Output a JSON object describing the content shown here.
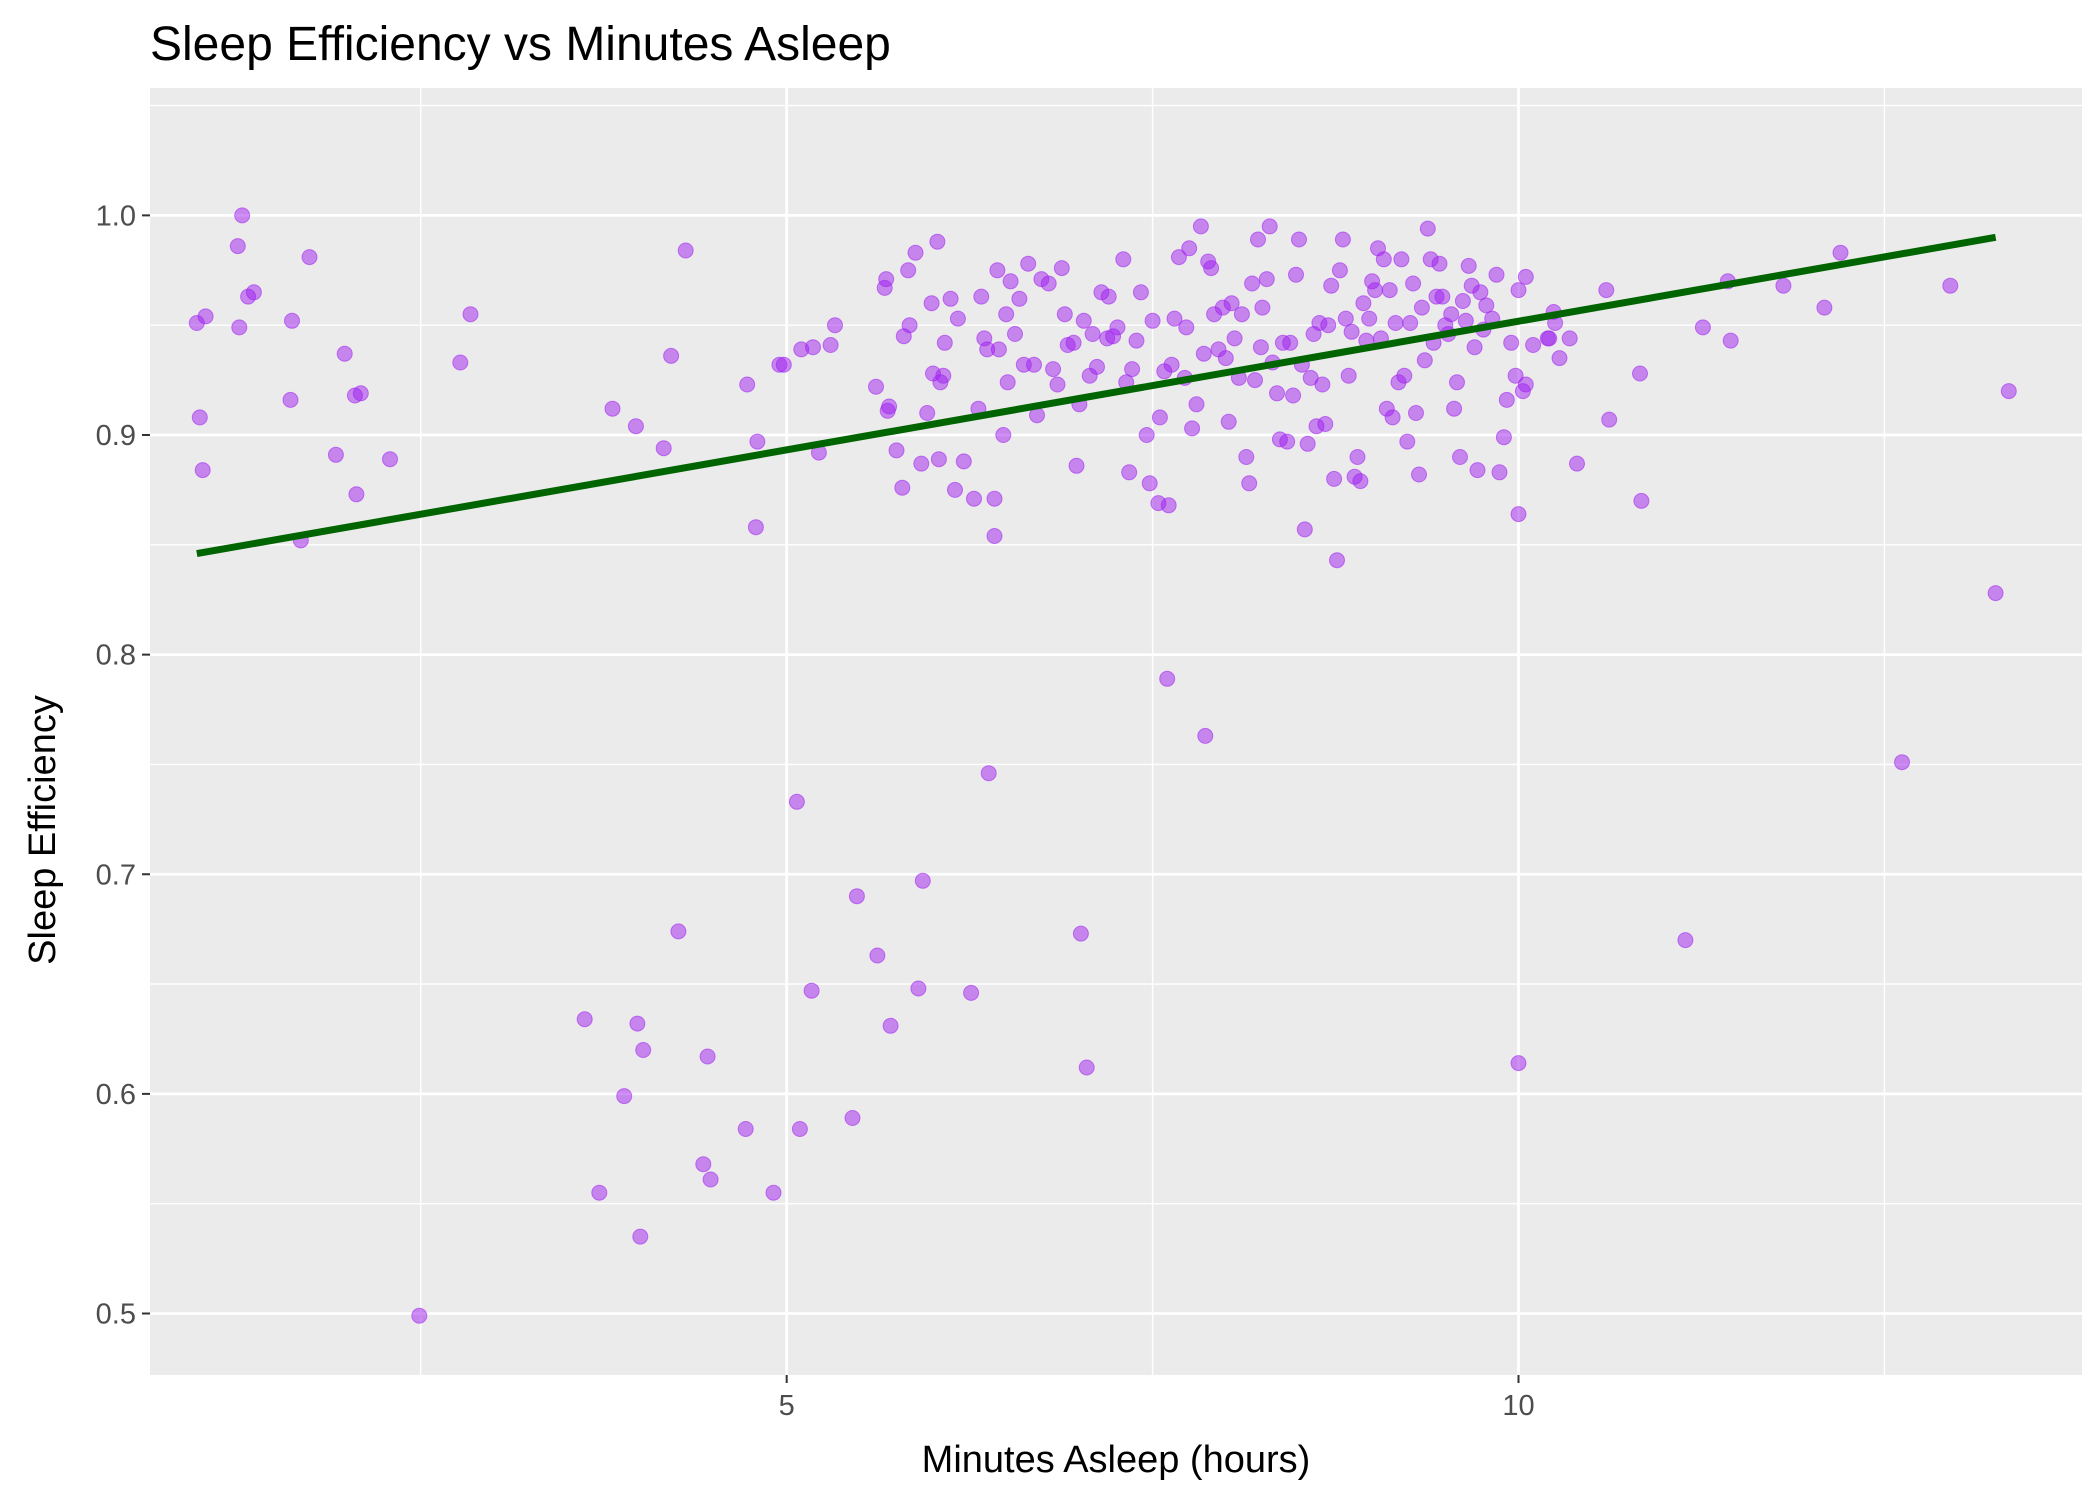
{
  "chart_data": {
    "type": "scatter",
    "title": "Sleep Efficiency vs Minutes Asleep",
    "xlabel": "Minutes Asleep (hours)",
    "ylabel": "Sleep Efficiency",
    "xlim": [
      0.65,
      13.85
    ],
    "ylim": [
      0.472,
      1.058
    ],
    "x_ticks": [
      5,
      10
    ],
    "x_minor_ticks": [
      2.5,
      7.5,
      12.5
    ],
    "y_ticks": [
      0.5,
      0.6,
      0.7,
      0.8,
      0.9,
      1.0
    ],
    "grid": true,
    "legend": "none",
    "colors": {
      "panel_background": "#ebebeb",
      "grid": "#ffffff",
      "points": "#a020f0",
      "trend_line": "#006400"
    },
    "trend_line": {
      "x": [
        0.97,
        13.26
      ],
      "y": [
        0.846,
        0.99
      ]
    },
    "series": [
      {
        "points": [
          [
            0.97,
            0.951
          ],
          [
            1.03,
            0.954
          ],
          [
            0.99,
            0.908
          ],
          [
            1.01,
            0.884
          ],
          [
            1.25,
            0.986
          ],
          [
            1.28,
            1.0
          ],
          [
            1.26,
            0.949
          ],
          [
            1.32,
            0.963
          ],
          [
            1.36,
            0.965
          ],
          [
            1.62,
            0.952
          ],
          [
            1.61,
            0.916
          ],
          [
            1.74,
            0.981
          ],
          [
            1.68,
            0.852
          ],
          [
            1.92,
            0.891
          ],
          [
            1.98,
            0.937
          ],
          [
            2.05,
            0.918
          ],
          [
            2.09,
            0.919
          ],
          [
            2.06,
            0.873
          ],
          [
            2.29,
            0.889
          ],
          [
            2.49,
            0.499
          ],
          [
            2.77,
            0.933
          ],
          [
            2.84,
            0.955
          ],
          [
            3.62,
            0.634
          ],
          [
            3.72,
            0.555
          ],
          [
            3.81,
            0.912
          ],
          [
            3.89,
            0.599
          ],
          [
            3.97,
            0.904
          ],
          [
            3.98,
            0.632
          ],
          [
            4.02,
            0.62
          ],
          [
            4.0,
            0.535
          ],
          [
            4.16,
            0.894
          ],
          [
            4.21,
            0.936
          ],
          [
            4.26,
            0.674
          ],
          [
            4.31,
            0.984
          ],
          [
            4.43,
            0.568
          ],
          [
            4.46,
            0.617
          ],
          [
            4.48,
            0.561
          ],
          [
            4.73,
            0.923
          ],
          [
            4.72,
            0.584
          ],
          [
            4.79,
            0.858
          ],
          [
            4.8,
            0.897
          ],
          [
            4.91,
            0.555
          ],
          [
            4.95,
            0.932
          ],
          [
            4.98,
            0.932
          ],
          [
            5.07,
            0.733
          ],
          [
            5.1,
            0.939
          ],
          [
            5.09,
            0.584
          ],
          [
            5.17,
            0.647
          ],
          [
            5.18,
            0.94
          ],
          [
            5.22,
            0.892
          ],
          [
            5.3,
            0.941
          ],
          [
            5.33,
            0.95
          ],
          [
            5.45,
            0.589
          ],
          [
            5.48,
            0.69
          ],
          [
            5.61,
            0.922
          ],
          [
            5.62,
            0.663
          ],
          [
            5.67,
            0.967
          ],
          [
            5.68,
            0.971
          ],
          [
            5.69,
            0.911
          ],
          [
            5.7,
            0.913
          ],
          [
            5.71,
            0.631
          ],
          [
            5.75,
            0.893
          ],
          [
            5.79,
            0.876
          ],
          [
            5.8,
            0.945
          ],
          [
            5.83,
            0.975
          ],
          [
            5.84,
            0.95
          ],
          [
            5.88,
            0.983
          ],
          [
            5.9,
            0.648
          ],
          [
            5.92,
            0.887
          ],
          [
            5.93,
            0.697
          ],
          [
            5.96,
            0.91
          ],
          [
            5.99,
            0.96
          ],
          [
            6.0,
            0.928
          ],
          [
            6.03,
            0.988
          ],
          [
            6.04,
            0.889
          ],
          [
            6.05,
            0.924
          ],
          [
            6.07,
            0.927
          ],
          [
            6.08,
            0.942
          ],
          [
            6.12,
            0.962
          ],
          [
            6.15,
            0.875
          ],
          [
            6.17,
            0.953
          ],
          [
            6.21,
            0.888
          ],
          [
            6.26,
            0.646
          ],
          [
            6.28,
            0.871
          ],
          [
            6.31,
            0.912
          ],
          [
            6.33,
            0.963
          ],
          [
            6.35,
            0.944
          ],
          [
            6.37,
            0.939
          ],
          [
            6.38,
            0.746
          ],
          [
            6.42,
            0.871
          ],
          [
            6.42,
            0.854
          ],
          [
            6.44,
            0.975
          ],
          [
            6.45,
            0.939
          ],
          [
            6.48,
            0.9
          ],
          [
            6.5,
            0.955
          ],
          [
            6.51,
            0.924
          ],
          [
            6.53,
            0.97
          ],
          [
            6.56,
            0.946
          ],
          [
            6.59,
            0.962
          ],
          [
            6.62,
            0.932
          ],
          [
            6.65,
            0.978
          ],
          [
            6.69,
            0.932
          ],
          [
            6.71,
            0.909
          ],
          [
            6.74,
            0.971
          ],
          [
            6.79,
            0.969
          ],
          [
            6.82,
            0.93
          ],
          [
            6.85,
            0.923
          ],
          [
            6.88,
            0.976
          ],
          [
            6.9,
            0.955
          ],
          [
            6.92,
            0.941
          ],
          [
            6.96,
            0.942
          ],
          [
            6.98,
            0.886
          ],
          [
            7.0,
            0.914
          ],
          [
            7.01,
            0.673
          ],
          [
            7.03,
            0.952
          ],
          [
            7.05,
            0.612
          ],
          [
            7.07,
            0.927
          ],
          [
            7.09,
            0.946
          ],
          [
            7.12,
            0.931
          ],
          [
            7.15,
            0.965
          ],
          [
            7.19,
            0.944
          ],
          [
            7.2,
            0.963
          ],
          [
            7.23,
            0.945
          ],
          [
            7.26,
            0.949
          ],
          [
            7.3,
            0.98
          ],
          [
            7.32,
            0.924
          ],
          [
            7.34,
            0.883
          ],
          [
            7.36,
            0.93
          ],
          [
            7.39,
            0.943
          ],
          [
            7.42,
            0.965
          ],
          [
            7.46,
            0.9
          ],
          [
            7.48,
            0.878
          ],
          [
            7.5,
            0.952
          ],
          [
            7.54,
            0.869
          ],
          [
            7.55,
            0.908
          ],
          [
            7.58,
            0.929
          ],
          [
            7.6,
            0.789
          ],
          [
            7.61,
            0.868
          ],
          [
            7.63,
            0.932
          ],
          [
            7.65,
            0.953
          ],
          [
            7.68,
            0.981
          ],
          [
            7.72,
            0.926
          ],
          [
            7.73,
            0.949
          ],
          [
            7.75,
            0.985
          ],
          [
            7.77,
            0.903
          ],
          [
            7.8,
            0.914
          ],
          [
            7.83,
            0.995
          ],
          [
            7.85,
            0.937
          ],
          [
            7.86,
            0.763
          ],
          [
            7.88,
            0.979
          ],
          [
            7.9,
            0.976
          ],
          [
            7.92,
            0.955
          ],
          [
            7.95,
            0.939
          ],
          [
            7.98,
            0.958
          ],
          [
            8.0,
            0.935
          ],
          [
            8.02,
            0.906
          ],
          [
            8.04,
            0.96
          ],
          [
            8.06,
            0.944
          ],
          [
            8.09,
            0.926
          ],
          [
            8.11,
            0.955
          ],
          [
            8.14,
            0.89
          ],
          [
            8.16,
            0.878
          ],
          [
            8.18,
            0.969
          ],
          [
            8.2,
            0.925
          ],
          [
            8.22,
            0.989
          ],
          [
            8.24,
            0.94
          ],
          [
            8.25,
            0.958
          ],
          [
            8.28,
            0.971
          ],
          [
            8.3,
            0.995
          ],
          [
            8.32,
            0.933
          ],
          [
            8.35,
            0.919
          ],
          [
            8.37,
            0.898
          ],
          [
            8.39,
            0.942
          ],
          [
            8.42,
            0.897
          ],
          [
            8.44,
            0.942
          ],
          [
            8.46,
            0.918
          ],
          [
            8.48,
            0.973
          ],
          [
            8.5,
            0.989
          ],
          [
            8.52,
            0.932
          ],
          [
            8.54,
            0.857
          ],
          [
            8.56,
            0.896
          ],
          [
            8.58,
            0.926
          ],
          [
            8.6,
            0.946
          ],
          [
            8.62,
            0.904
          ],
          [
            8.64,
            0.951
          ],
          [
            8.66,
            0.923
          ],
          [
            8.68,
            0.905
          ],
          [
            8.7,
            0.95
          ],
          [
            8.72,
            0.968
          ],
          [
            8.74,
            0.88
          ],
          [
            8.76,
            0.843
          ],
          [
            8.78,
            0.975
          ],
          [
            8.8,
            0.989
          ],
          [
            8.82,
            0.953
          ],
          [
            8.84,
            0.927
          ],
          [
            8.86,
            0.947
          ],
          [
            8.88,
            0.881
          ],
          [
            8.9,
            0.89
          ],
          [
            8.92,
            0.879
          ],
          [
            8.94,
            0.96
          ],
          [
            8.96,
            0.943
          ],
          [
            8.98,
            0.953
          ],
          [
            9.0,
            0.97
          ],
          [
            9.02,
            0.966
          ],
          [
            9.04,
            0.985
          ],
          [
            9.06,
            0.944
          ],
          [
            9.08,
            0.98
          ],
          [
            9.1,
            0.912
          ],
          [
            9.12,
            0.966
          ],
          [
            9.14,
            0.908
          ],
          [
            9.16,
            0.951
          ],
          [
            9.18,
            0.924
          ],
          [
            9.2,
            0.98
          ],
          [
            9.22,
            0.927
          ],
          [
            9.24,
            0.897
          ],
          [
            9.26,
            0.951
          ],
          [
            9.28,
            0.969
          ],
          [
            9.3,
            0.91
          ],
          [
            9.32,
            0.882
          ],
          [
            9.34,
            0.958
          ],
          [
            9.36,
            0.934
          ],
          [
            9.38,
            0.994
          ],
          [
            9.4,
            0.98
          ],
          [
            9.42,
            0.942
          ],
          [
            9.44,
            0.963
          ],
          [
            9.46,
            0.978
          ],
          [
            9.48,
            0.963
          ],
          [
            9.5,
            0.95
          ],
          [
            9.52,
            0.946
          ],
          [
            9.54,
            0.955
          ],
          [
            9.56,
            0.912
          ],
          [
            9.58,
            0.924
          ],
          [
            9.6,
            0.89
          ],
          [
            9.62,
            0.961
          ],
          [
            9.64,
            0.952
          ],
          [
            9.66,
            0.977
          ],
          [
            9.68,
            0.968
          ],
          [
            9.7,
            0.94
          ],
          [
            9.72,
            0.884
          ],
          [
            9.74,
            0.965
          ],
          [
            9.76,
            0.948
          ],
          [
            9.78,
            0.959
          ],
          [
            9.82,
            0.953
          ],
          [
            9.85,
            0.973
          ],
          [
            9.87,
            0.883
          ],
          [
            9.9,
            0.899
          ],
          [
            9.92,
            0.916
          ],
          [
            9.95,
            0.942
          ],
          [
            9.98,
            0.927
          ],
          [
            10.0,
            0.864
          ],
          [
            10.03,
            0.92
          ],
          [
            10.05,
            0.923
          ],
          [
            10.1,
            0.941
          ],
          [
            10.24,
            0.956
          ],
          [
            10.28,
            0.935
          ],
          [
            10.35,
            0.944
          ],
          [
            10.0,
            0.966
          ],
          [
            10.05,
            0.972
          ],
          [
            10.0,
            0.614
          ],
          [
            10.2,
            0.944
          ],
          [
            10.25,
            0.951
          ],
          [
            10.21,
            0.944
          ],
          [
            10.4,
            0.887
          ],
          [
            10.6,
            0.966
          ],
          [
            10.62,
            0.907
          ],
          [
            10.83,
            0.928
          ],
          [
            10.84,
            0.87
          ],
          [
            11.14,
            0.67
          ],
          [
            11.26,
            0.949
          ],
          [
            11.43,
            0.97
          ],
          [
            11.45,
            0.943
          ],
          [
            11.81,
            0.968
          ],
          [
            12.09,
            0.958
          ],
          [
            12.2,
            0.983
          ],
          [
            12.62,
            0.751
          ],
          [
            12.95,
            0.968
          ],
          [
            13.35,
            0.92
          ],
          [
            13.26,
            0.828
          ]
        ]
      }
    ]
  }
}
